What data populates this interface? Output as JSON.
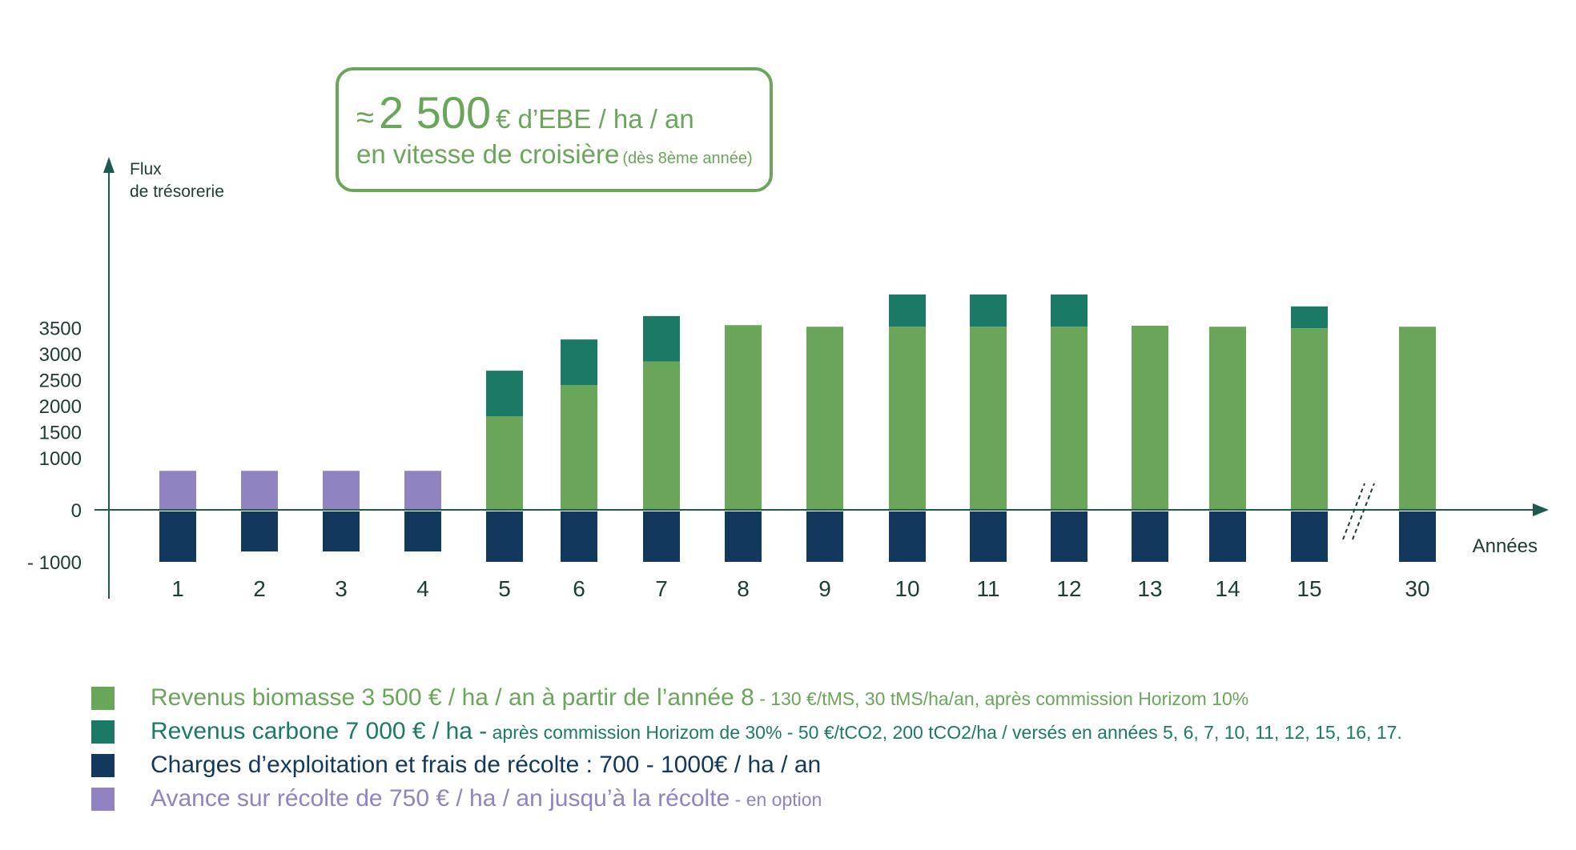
{
  "callout": {
    "approx_symbol": "≈",
    "big_value": "2 500",
    "line1_rest": "€ d’EBE / ha / an",
    "line2": "en vitesse de croisière",
    "line2_note": "(dès 8ème année)"
  },
  "colors": {
    "biomasse": "#6aa65a",
    "carbone": "#1b7a66",
    "charges": "#13385e",
    "avance": "#9183c2",
    "axis": "#1f5a4e",
    "text": "#1f3b35",
    "callout_border": "#6aa65a"
  },
  "chart_data": {
    "type": "bar",
    "stacked": true,
    "ylabel": "Flux\nde trésorerie",
    "xlabel": "Années",
    "y_ticks": [
      {
        "value": 3500,
        "label": "3500"
      },
      {
        "value": 3000,
        "label": "3000"
      },
      {
        "value": 2500,
        "label": "2500"
      },
      {
        "value": 2000,
        "label": "2000"
      },
      {
        "value": 1500,
        "label": "1500"
      },
      {
        "value": 1000,
        "label": "1000"
      },
      {
        "value": 0,
        "label": "0"
      },
      {
        "value": -1000,
        "label": "- 1000"
      }
    ],
    "categories": [
      "1",
      "2",
      "3",
      "4",
      "5",
      "6",
      "7",
      "8",
      "9",
      "10",
      "11",
      "12",
      "13",
      "14",
      "15",
      "30"
    ],
    "axis_break_after": "15",
    "series": [
      {
        "key": "avance",
        "values": [
          750,
          750,
          750,
          750,
          0,
          0,
          0,
          0,
          0,
          0,
          0,
          0,
          0,
          0,
          0,
          0
        ]
      },
      {
        "key": "biomasse",
        "values": [
          0,
          0,
          0,
          0,
          1800,
          2400,
          2850,
          3550,
          3520,
          3520,
          3520,
          3520,
          3540,
          3520,
          3490,
          3520
        ]
      },
      {
        "key": "carbone",
        "values": [
          0,
          0,
          0,
          0,
          875,
          875,
          875,
          0,
          0,
          620,
          620,
          620,
          0,
          0,
          420,
          0
        ]
      },
      {
        "key": "charges",
        "values": [
          -1000,
          -800,
          -800,
          -800,
          -1000,
          -1000,
          -1000,
          -1000,
          -1000,
          -1000,
          -1000,
          -1000,
          -1000,
          -1000,
          -1000,
          -1000
        ]
      }
    ]
  },
  "legend": [
    {
      "key": "biomasse",
      "text": "Revenus biomasse 3 500 € / ha / an à partir de l’année 8",
      "detail": " - 130 €/tMS, 30 tMS/ha/an, après commission Horizom 10%"
    },
    {
      "key": "carbone",
      "text": "Revenus carbone 7 000 € / ha -",
      "detail": " après commission Horizom de 30% - 50 €/tCO2, 200 tCO2/ha / versés en années 5, 6, 7, 10, 11, 12, 15, 16, 17."
    },
    {
      "key": "charges",
      "text": "Charges d’exploitation et frais de récolte : 700 - 1000€ / ha / an",
      "detail": ""
    },
    {
      "key": "avance",
      "text": "Avance sur récolte de 750 € / ha / an jusqu’à la récolte",
      "detail": " - en option"
    }
  ]
}
